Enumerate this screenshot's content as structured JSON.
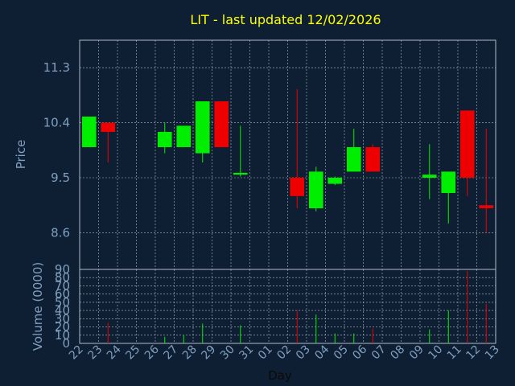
{
  "chart_data": {
    "type": "candlestick",
    "title": "LIT - last updated 12/02/2026",
    "xlabel": "Day",
    "price_ylabel": "Price",
    "volume_ylabel": "Volume (0000)",
    "x_tick_labels": [
      "22",
      "23",
      "24",
      "25",
      "26",
      "27",
      "28",
      "29",
      "30",
      "31",
      "01",
      "02",
      "03",
      "04",
      "05",
      "06",
      "07",
      "08",
      "09",
      "10",
      "11",
      "12",
      "13"
    ],
    "price_ylim": [
      8.0,
      11.75
    ],
    "price_y_ticks": [
      {
        "value": 8.6,
        "label": "8.6"
      },
      {
        "value": 9.5,
        "label": "9.5"
      },
      {
        "value": 10.4,
        "label": "10.4"
      },
      {
        "value": 11.3,
        "label": "11.3"
      }
    ],
    "volume_ylim": [
      0,
      90
    ],
    "volume_y_ticks": [
      0,
      10,
      20,
      30,
      40,
      50,
      60,
      70,
      80,
      90
    ],
    "grid": true,
    "colors": {
      "background": "#0f1f33",
      "plot_background": "#0f1f33",
      "grid": "#b0b8c8",
      "axis_text": "#7f9fbf",
      "title": "#ffff00",
      "up": "#00ee00",
      "down": "#ee0000"
    },
    "candles": [
      {
        "day": "22",
        "slot": 0,
        "open": 10.0,
        "close": 10.5,
        "high": 10.5,
        "low": 10.0,
        "volume": 0
      },
      {
        "day": "23",
        "slot": 1,
        "open": 10.4,
        "close": 10.25,
        "high": 10.4,
        "low": 9.75,
        "volume": 25
      },
      {
        "day": "26",
        "slot": 4,
        "open": 10.0,
        "close": 10.25,
        "high": 10.4,
        "low": 9.9,
        "volume": 8
      },
      {
        "day": "27",
        "slot": 5,
        "open": 10.0,
        "close": 10.35,
        "high": 10.35,
        "low": 10.0,
        "volume": 10
      },
      {
        "day": "28",
        "slot": 6,
        "open": 9.9,
        "close": 10.75,
        "high": 10.75,
        "low": 9.75,
        "volume": 24
      },
      {
        "day": "29",
        "slot": 7,
        "open": 10.75,
        "close": 10.0,
        "high": 10.75,
        "low": 10.0,
        "volume": 0
      },
      {
        "day": "30",
        "slot": 8,
        "open": 9.55,
        "close": 9.58,
        "high": 10.35,
        "low": 9.52,
        "volume": 22
      },
      {
        "day": "02",
        "slot": 11,
        "open": 9.5,
        "close": 9.2,
        "high": 10.95,
        "low": 9.0,
        "volume": 40
      },
      {
        "day": "03",
        "slot": 12,
        "open": 9.0,
        "close": 9.6,
        "high": 9.68,
        "low": 8.95,
        "volume": 35
      },
      {
        "day": "04",
        "slot": 13,
        "open": 9.4,
        "close": 9.5,
        "high": 9.52,
        "low": 9.38,
        "volume": 12
      },
      {
        "day": "05",
        "slot": 14,
        "open": 9.6,
        "close": 10.0,
        "high": 10.3,
        "low": 9.6,
        "volume": 12
      },
      {
        "day": "06",
        "slot": 15,
        "open": 10.0,
        "close": 9.6,
        "high": 10.05,
        "low": 9.6,
        "volume": 18
      },
      {
        "day": "09",
        "slot": 18,
        "open": 9.5,
        "close": 9.55,
        "high": 10.05,
        "low": 9.15,
        "volume": 17
      },
      {
        "day": "10",
        "slot": 19,
        "open": 9.25,
        "close": 9.6,
        "high": 9.6,
        "low": 8.75,
        "volume": 40
      },
      {
        "day": "11",
        "slot": 20,
        "open": 10.6,
        "close": 9.5,
        "high": 10.6,
        "low": 9.2,
        "volume": 88
      },
      {
        "day": "12",
        "slot": 21,
        "open": 9.05,
        "close": 9.0,
        "high": 10.3,
        "low": 8.6,
        "volume": 48
      }
    ]
  }
}
